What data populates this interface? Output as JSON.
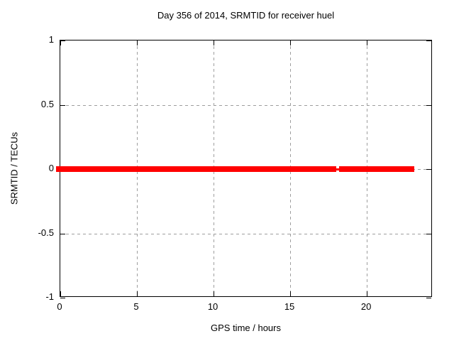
{
  "chart_data": {
    "type": "line",
    "title": "Day 356 of 2014, SRMTID for receiver huel",
    "xlabel": "GPS time / hours",
    "ylabel": "SRMTID / TECUs",
    "xlim": [
      0,
      24.3
    ],
    "ylim": [
      -1,
      1
    ],
    "xticks": [
      0,
      5,
      10,
      15,
      20
    ],
    "xtick_labels": [
      "0",
      "5",
      "10",
      "15",
      "20"
    ],
    "yticks": [
      1,
      0.5,
      0,
      -0.5,
      -1
    ],
    "ytick_labels": [
      "1",
      "0.5",
      "0",
      "-0.5",
      "-1"
    ],
    "grid": true,
    "legend": "none",
    "series": [
      {
        "name": "SRMTID",
        "color": "#ff0000",
        "y_value": 0,
        "band_thickness_px": 8,
        "segments_hours": [
          [
            -0.3,
            18.0
          ],
          [
            18.2,
            23.1
          ]
        ],
        "connector_hours": [
          17.9,
          18.3
        ],
        "connector_thickness_px": 3
      }
    ]
  },
  "colors": {
    "background": "#ffffff",
    "text": "#000000",
    "axis": "#000000",
    "grid": "#9e9e9e",
    "series": "#ff0000"
  }
}
